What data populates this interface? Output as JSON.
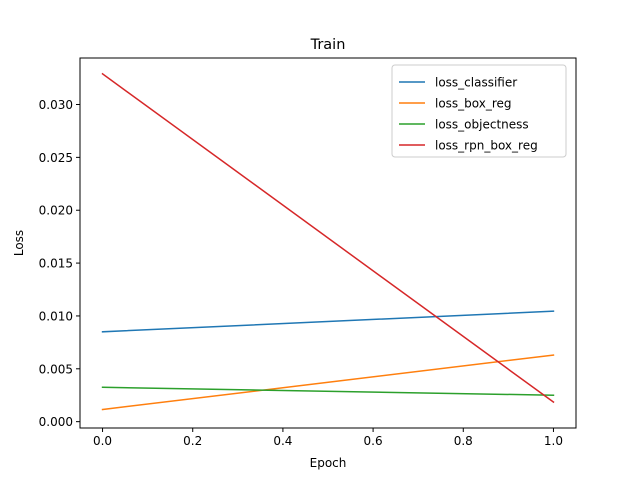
{
  "chart_data": {
    "type": "line",
    "title": "Train",
    "xlabel": "Epoch",
    "ylabel": "Loss",
    "xlim": [
      -0.05,
      1.05
    ],
    "ylim": [
      -0.0006,
      0.0344
    ],
    "xticks": [
      0.0,
      0.2,
      0.4,
      0.6,
      0.8,
      1.0
    ],
    "xtick_labels": [
      "0.0",
      "0.2",
      "0.4",
      "0.6",
      "0.8",
      "1.0"
    ],
    "yticks": [
      0.0,
      0.005,
      0.01,
      0.015,
      0.02,
      0.025,
      0.03
    ],
    "ytick_labels": [
      "0.000",
      "0.005",
      "0.010",
      "0.015",
      "0.020",
      "0.025",
      "0.030"
    ],
    "grid": false,
    "legend_position": "top-right",
    "x": [
      0.0,
      1.0
    ],
    "series": [
      {
        "name": "loss_classifier",
        "color": "#1f77b4",
        "values": [
          0.0085,
          0.01045
        ]
      },
      {
        "name": "loss_box_reg",
        "color": "#ff7f0e",
        "values": [
          0.00115,
          0.0063
        ]
      },
      {
        "name": "loss_objectness",
        "color": "#2ca02c",
        "values": [
          0.00325,
          0.0025
        ]
      },
      {
        "name": "loss_rpn_box_reg",
        "color": "#d62728",
        "values": [
          0.0329,
          0.00185
        ]
      }
    ]
  }
}
